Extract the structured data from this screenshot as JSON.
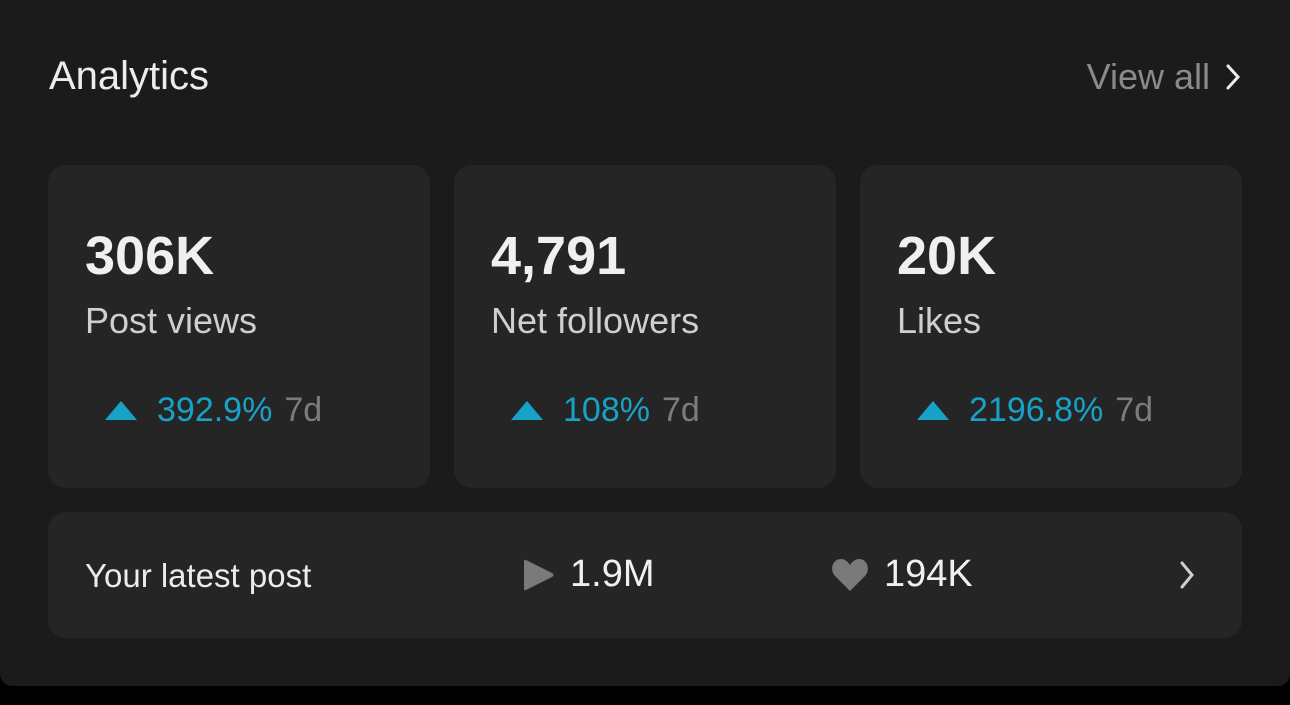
{
  "header": {
    "title": "Analytics",
    "view_all": "View all"
  },
  "accent_color": "#17a3c8",
  "cards": [
    {
      "value": "306K",
      "label": "Post views",
      "change": "392.9%",
      "period": "7d",
      "direction": "up"
    },
    {
      "value": "4,791",
      "label": "Net followers",
      "change": "108%",
      "period": "7d",
      "direction": "up"
    },
    {
      "value": "20K",
      "label": "Likes",
      "change": "2196.8%",
      "period": "7d",
      "direction": "up"
    }
  ],
  "latest_post": {
    "label": "Your latest post",
    "views": "1.9M",
    "likes": "194K",
    "views_icon": "play-icon",
    "likes_icon": "heart-icon"
  }
}
